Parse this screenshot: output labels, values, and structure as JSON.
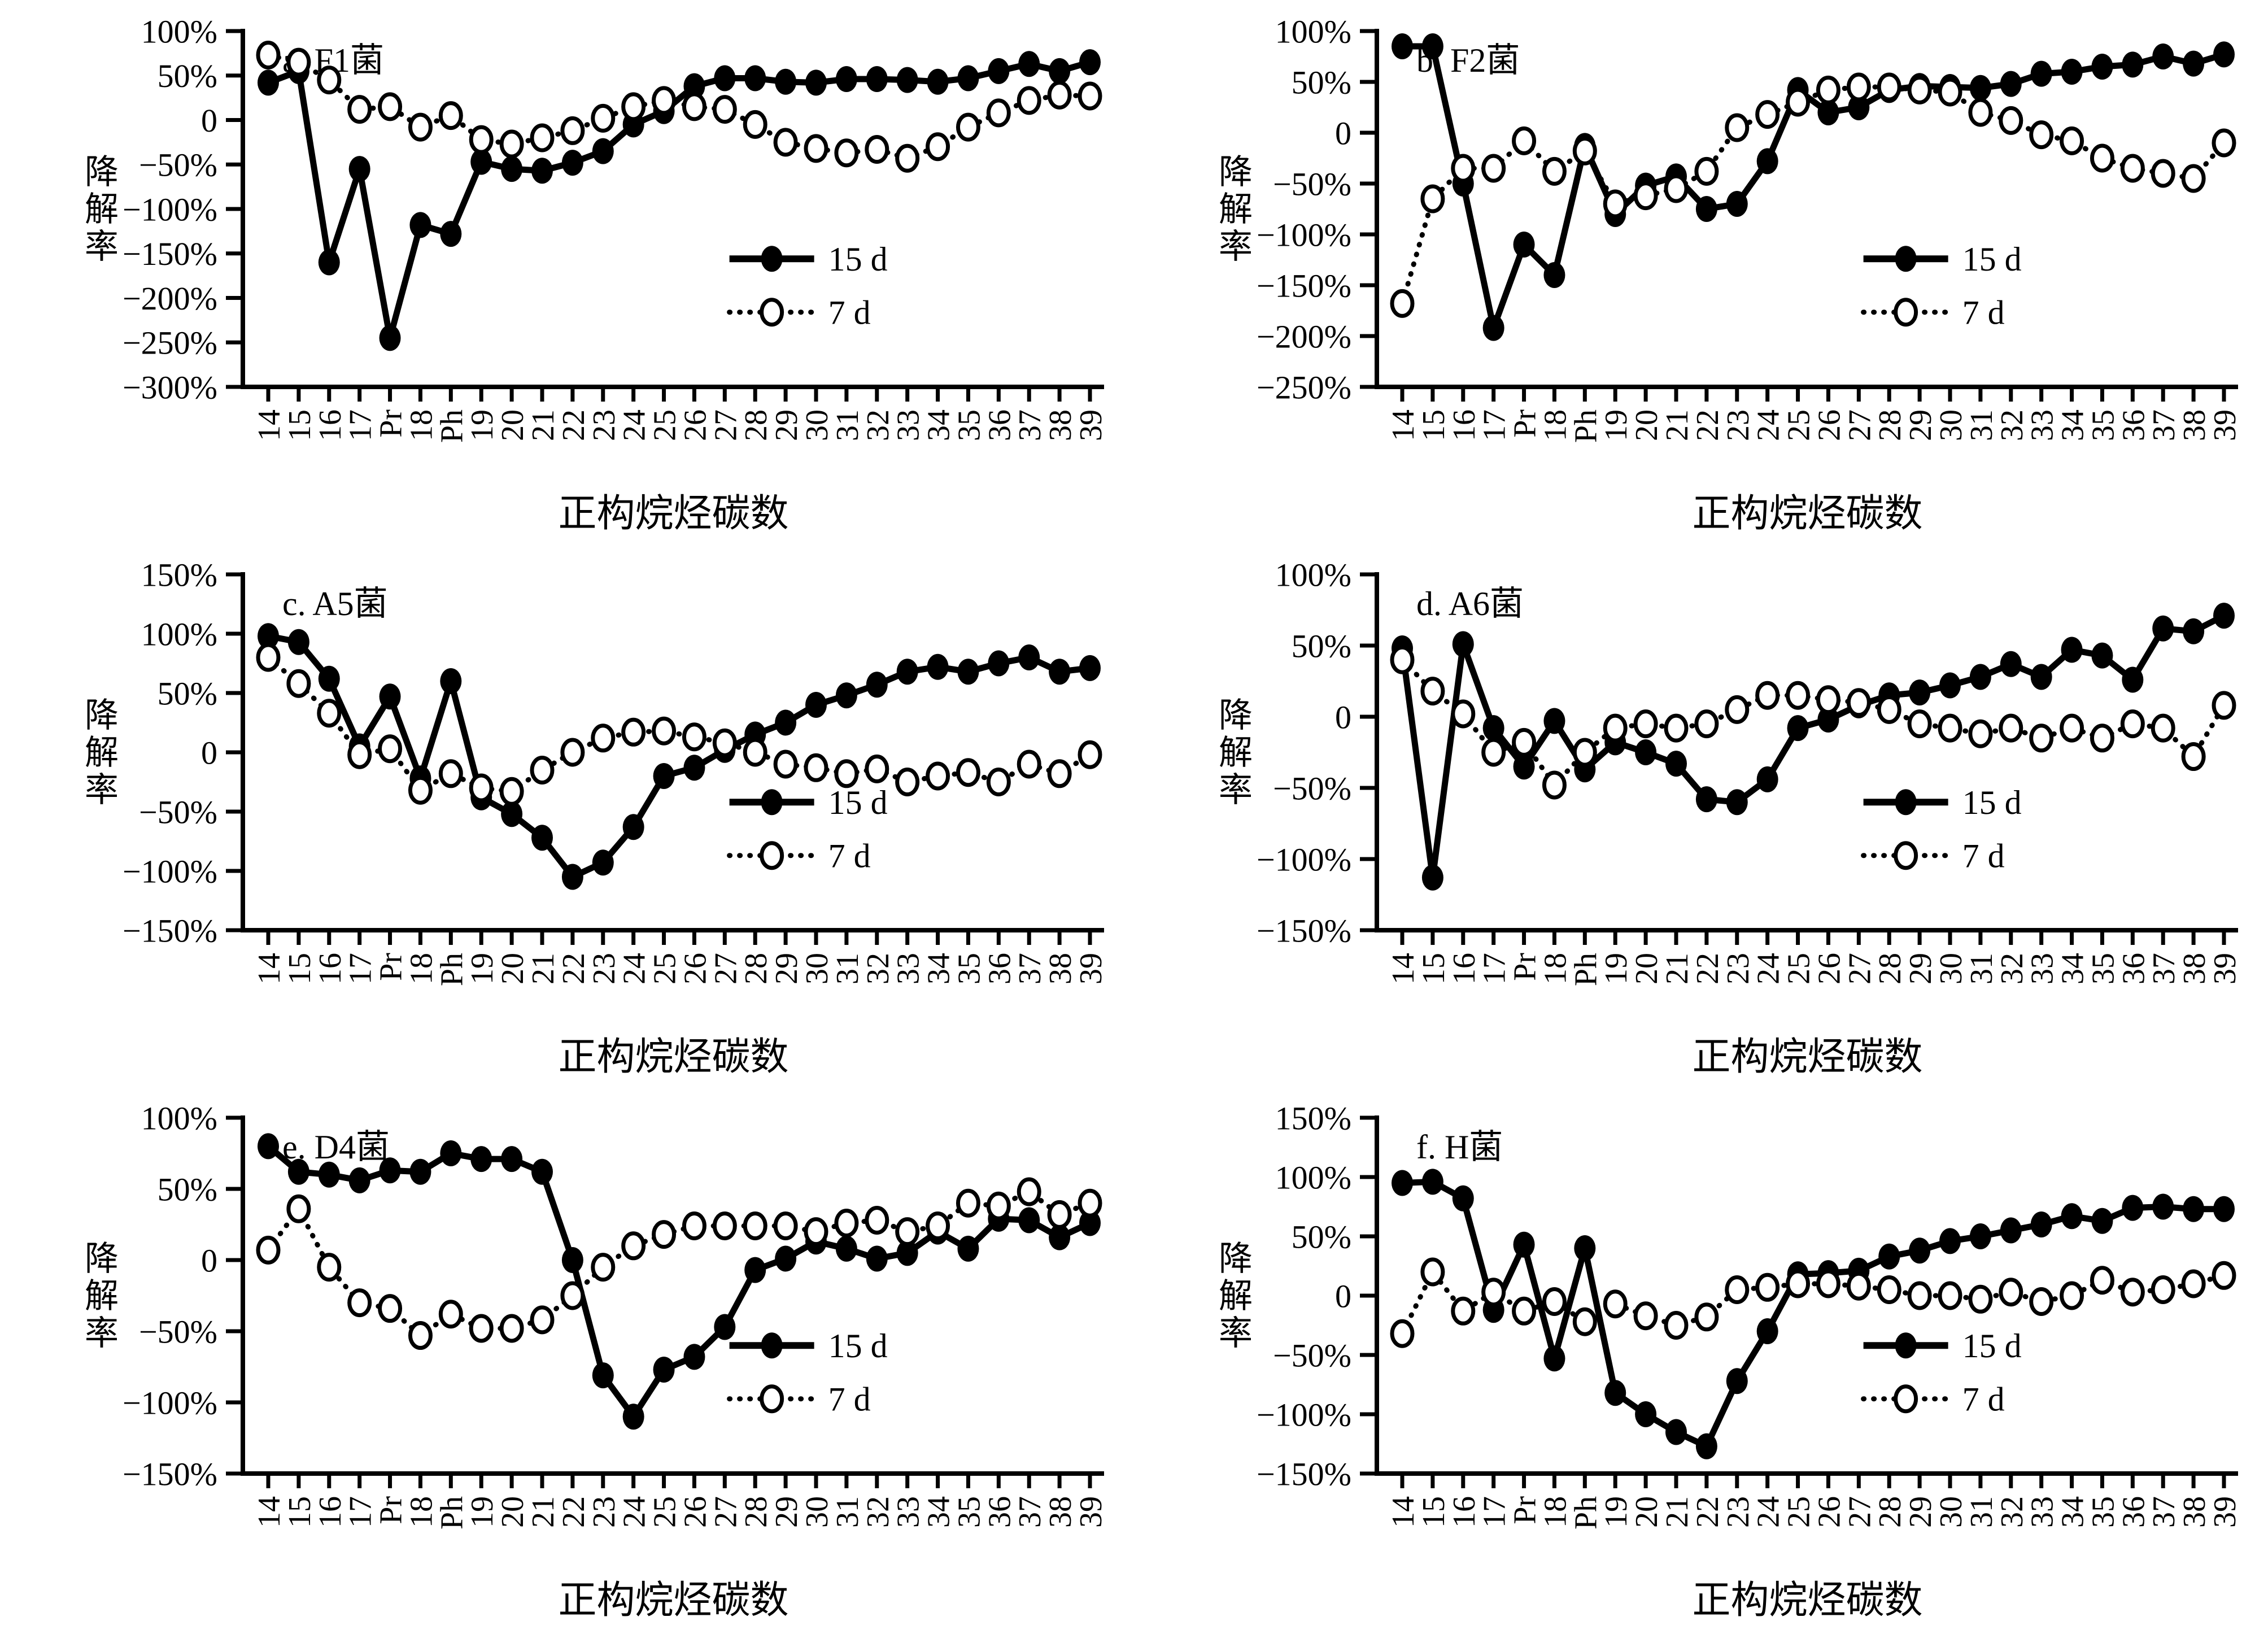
{
  "figure": {
    "background": "#ffffff",
    "foreground": "#000000",
    "y_axis_label": "降解率",
    "x_axis_label": "正构烷烃碳数",
    "legend_labels": [
      "15 d",
      "7 d"
    ]
  },
  "chart_data": {
    "type": "line",
    "categories": [
      "14",
      "15",
      "16",
      "17",
      "Pr",
      "18",
      "Ph",
      "19",
      "20",
      "21",
      "22",
      "23",
      "24",
      "25",
      "26",
      "27",
      "28",
      "29",
      "30",
      "31",
      "32",
      "33",
      "34",
      "35",
      "36",
      "37",
      "38",
      "39"
    ],
    "xlabel": "正构烷烃碳数",
    "ylabel": "降解率",
    "legend_position": "right-middle-inside",
    "grid": false,
    "charts": [
      {
        "title": "a. F1菌",
        "ylim": [
          -300,
          100
        ],
        "ytick_step": 50,
        "series": [
          {
            "name": "15 d",
            "line": "solid",
            "marker": "filled-circle",
            "values": [
              42,
              55,
              -160,
              -55,
              -245,
              -118,
              -128,
              -47,
              -55,
              -57,
              -48,
              -35,
              -5,
              10,
              38,
              47,
              47,
              43,
              42,
              46,
              46,
              45,
              43,
              47,
              55,
              63,
              55,
              65
            ]
          },
          {
            "name": "7 d",
            "line": "dotted",
            "marker": "open-circle",
            "values": [
              73,
              65,
              45,
              12,
              15,
              -8,
              5,
              -22,
              -27,
              -20,
              -12,
              2,
              15,
              22,
              15,
              12,
              -5,
              -25,
              -32,
              -37,
              -33,
              -43,
              -30,
              -8,
              8,
              22,
              28,
              27
            ]
          }
        ]
      },
      {
        "title": "b. F2菌",
        "ylim": [
          -250,
          100
        ],
        "ytick_step": 50,
        "series": [
          {
            "name": "15 d",
            "line": "solid",
            "marker": "filled-circle",
            "values": [
              85,
              85,
              -50,
              -192,
              -110,
              -140,
              -13,
              -80,
              -52,
              -43,
              -75,
              -70,
              -28,
              42,
              20,
              25,
              42,
              46,
              45,
              44,
              48,
              58,
              60,
              65,
              67,
              75,
              68,
              77
            ]
          },
          {
            "name": "7 d",
            "line": "dotted",
            "marker": "open-circle",
            "values": [
              -168,
              -65,
              -35,
              -35,
              -8,
              -38,
              -18,
              -70,
              -62,
              -55,
              -38,
              5,
              18,
              30,
              42,
              45,
              45,
              42,
              40,
              20,
              12,
              -2,
              -8,
              -25,
              -35,
              -40,
              -45,
              -10
            ]
          }
        ]
      },
      {
        "title": "c. A5菌",
        "ylim": [
          -150,
          150
        ],
        "ytick_step": 50,
        "series": [
          {
            "name": "15 d",
            "line": "solid",
            "marker": "filled-circle",
            "values": [
              98,
              93,
              62,
              5,
              47,
              -22,
              60,
              -38,
              -52,
              -72,
              -105,
              -93,
              -63,
              -20,
              -13,
              2,
              15,
              25,
              40,
              48,
              57,
              68,
              72,
              68,
              75,
              80,
              68,
              71
            ]
          },
          {
            "name": "7 d",
            "line": "dotted",
            "marker": "open-circle",
            "values": [
              80,
              58,
              33,
              -2,
              3,
              -32,
              -18,
              -30,
              -33,
              -15,
              0,
              12,
              17,
              18,
              13,
              8,
              0,
              -10,
              -13,
              -18,
              -14,
              -25,
              -20,
              -17,
              -25,
              -10,
              -18,
              -2
            ]
          }
        ]
      },
      {
        "title": "d. A6菌",
        "ylim": [
          -150,
          100
        ],
        "ytick_step": 50,
        "series": [
          {
            "name": "15 d",
            "line": "solid",
            "marker": "filled-circle",
            "values": [
              48,
              -113,
              51,
              -8,
              -35,
              -3,
              -37,
              -18,
              -25,
              -33,
              -58,
              -60,
              -44,
              -8,
              -2,
              8,
              15,
              17,
              22,
              28,
              37,
              28,
              47,
              43,
              26,
              62,
              60,
              71
            ]
          },
          {
            "name": "7 d",
            "line": "dotted",
            "marker": "open-circle",
            "values": [
              40,
              18,
              2,
              -25,
              -18,
              -48,
              -25,
              -8,
              -5,
              -8,
              -5,
              5,
              15,
              15,
              12,
              10,
              5,
              -5,
              -8,
              -12,
              -8,
              -15,
              -8,
              -15,
              -5,
              -8,
              -28,
              8
            ]
          }
        ]
      },
      {
        "title": "e. D4菌",
        "ylim": [
          -150,
          100
        ],
        "ytick_step": 50,
        "series": [
          {
            "name": "15 d",
            "line": "solid",
            "marker": "filled-circle",
            "values": [
              80,
              62,
              60,
              56,
              63,
              62,
              75,
              71,
              71,
              62,
              0,
              -81,
              -110,
              -77,
              -68,
              -47,
              -7,
              1,
              13,
              8,
              1,
              5,
              20,
              8,
              29,
              28,
              16,
              26
            ]
          },
          {
            "name": "7 d",
            "line": "dotted",
            "marker": "open-circle",
            "values": [
              7,
              36,
              -5,
              -30,
              -34,
              -53,
              -38,
              -48,
              -48,
              -42,
              -25,
              -5,
              10,
              18,
              24,
              24,
              24,
              24,
              20,
              26,
              28,
              20,
              24,
              40,
              38,
              48,
              32,
              40
            ]
          }
        ]
      },
      {
        "title": "f. H菌",
        "ylim": [
          -150,
          150
        ],
        "ytick_step": 50,
        "series": [
          {
            "name": "15 d",
            "line": "solid",
            "marker": "filled-circle",
            "values": [
              95,
              96,
              82,
              -12,
              43,
              -53,
              40,
              -82,
              -100,
              -115,
              -127,
              -72,
              -30,
              18,
              19,
              21,
              33,
              38,
              46,
              50,
              55,
              60,
              67,
              63,
              74,
              75,
              73,
              73
            ]
          },
          {
            "name": "7 d",
            "line": "dotted",
            "marker": "open-circle",
            "values": [
              -32,
              20,
              -13,
              3,
              -13,
              -5,
              -22,
              -7,
              -17,
              -25,
              -18,
              5,
              7,
              10,
              10,
              8,
              5,
              0,
              0,
              -3,
              3,
              -5,
              0,
              13,
              3,
              5,
              10,
              17
            ]
          }
        ]
      }
    ]
  }
}
